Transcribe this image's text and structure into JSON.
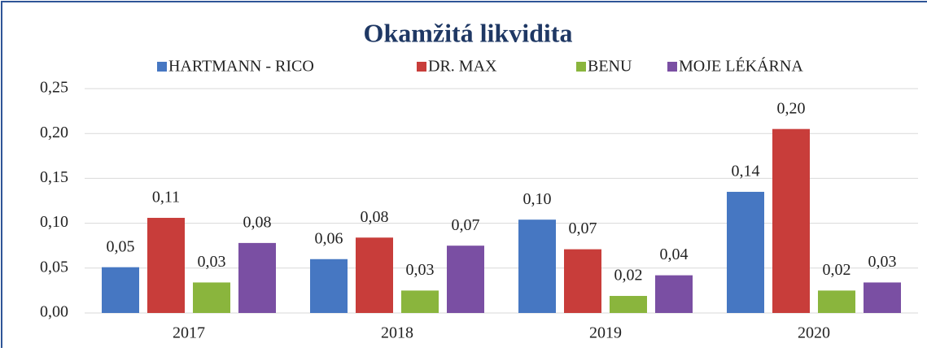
{
  "chart_data": {
    "type": "bar",
    "title": "Okamžitá likvidita",
    "categories": [
      "2017",
      "2018",
      "2019",
      "2020"
    ],
    "series": [
      {
        "name": "HARTMANN - RICO",
        "color": "#4677c2",
        "values": [
          0.051,
          0.06,
          0.104,
          0.135
        ],
        "value_labels": [
          "0,05",
          "0,06",
          "0,10",
          "0,14"
        ]
      },
      {
        "name": "DR. MAX",
        "color": "#c83d3a",
        "values": [
          0.106,
          0.084,
          0.071,
          0.205
        ],
        "value_labels": [
          "0,11",
          "0,08",
          "0,07",
          "0,20"
        ]
      },
      {
        "name": "BENU",
        "color": "#8ab53d",
        "values": [
          0.034,
          0.025,
          0.019,
          0.025
        ],
        "value_labels": [
          "0,03",
          "0,03",
          "0,02",
          "0,02"
        ]
      },
      {
        "name": "MOJE LÉKÁRNA",
        "color": "#7a4fa3",
        "values": [
          0.078,
          0.075,
          0.042,
          0.034
        ],
        "value_labels": [
          "0,08",
          "0,07",
          "0,04",
          "0,03"
        ]
      }
    ],
    "ylim": [
      0,
      0.25
    ],
    "yticks": [
      {
        "value": 0,
        "label": "0,00"
      },
      {
        "value": 0.05,
        "label": "0,05"
      },
      {
        "value": 0.1,
        "label": "0,10"
      },
      {
        "value": 0.15,
        "label": "0,15"
      },
      {
        "value": 0.2,
        "label": "0,20"
      },
      {
        "value": 0.25,
        "label": "0,25"
      }
    ],
    "grid": true
  }
}
